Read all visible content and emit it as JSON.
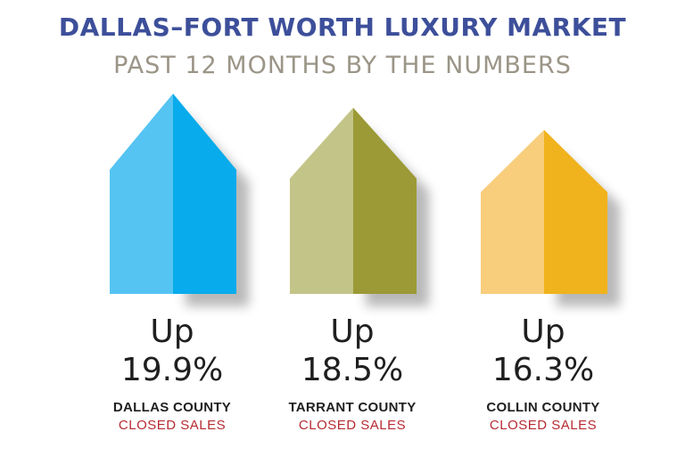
{
  "title": "DALLAS–FORT WORTH LUXURY MARKET",
  "subtitle": "PAST 12 MONTHS BY THE NUMBERS",
  "chart_data": {
    "type": "bar",
    "categories": [
      "DALLAS COUNTY",
      "TARRANT COUNTY",
      "COLLIN COUNTY"
    ],
    "values": [
      19.9,
      18.5,
      16.3
    ],
    "direction_label": "Up",
    "value_suffix": "%",
    "metric_label": "CLOSED SALES",
    "colors": [
      {
        "light": "#56c4f2",
        "dark": "#08abeb"
      },
      {
        "light": "#c3c488",
        "dark": "#9b9a36"
      },
      {
        "light": "#f8cd7c",
        "dark": "#f0b31d"
      }
    ]
  },
  "labels": [
    {
      "up": "Up",
      "pct": "19.9%",
      "county": "DALLAS COUNTY",
      "metric": "CLOSED SALES"
    },
    {
      "up": "Up",
      "pct": "18.5%",
      "county": "TARRANT COUNTY",
      "metric": "CLOSED SALES"
    },
    {
      "up": "Up",
      "pct": "16.3%",
      "county": "COLLIN COUNTY",
      "metric": "CLOSED SALES"
    }
  ]
}
